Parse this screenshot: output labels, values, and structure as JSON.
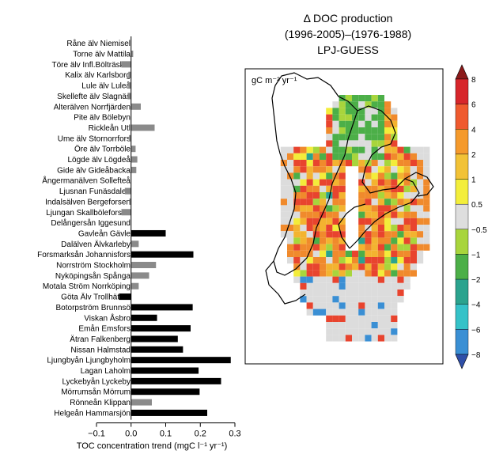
{
  "chart_data": [
    {
      "type": "bar",
      "orientation": "horizontal",
      "xlabel": "TOC concentration trend (mgC l⁻¹ yr⁻¹)",
      "xlim": [
        -0.1,
        0.3
      ],
      "xticks": [
        "−0.1",
        "0.0",
        "0.1",
        "0.2",
        "0.3"
      ],
      "tick_values": [
        -0.1,
        0.0,
        0.1,
        0.2,
        0.3
      ],
      "colors": {
        "significant": "#000000",
        "not_significant": "#8a8a8a"
      },
      "categories": [
        "Råne älv Niemisel",
        "Torne älv Mattila",
        "Töre älv Infl.Bölträsket",
        "Kalix älv Karlsborg",
        "Lule älv Luleå",
        "Skellefte älv Slagnäs",
        "Alterälven Norrfjärden",
        "Pite älv Bölebyn",
        "Rickleån Utl",
        "Ume älv Stornorrfors",
        "Öre älv Torrböle",
        "Lögde älv Lögdeå",
        "Gide älv Gideåbacka",
        "Ångermanälven Sollefteå",
        "Ljusnan Funäsdalen",
        "Indalsälven Bergeforsen",
        "Ljungan Skallböleforsen",
        "Delångersån Iggesund",
        "Gavleån Gävle",
        "Dalälven Älvkarleby",
        "Forsmarksån Johannisfors",
        "Norrström Stockholm",
        "Nyköpingsån Spånga",
        "Motala Ström Norrköping",
        "Göta Älv Trollhättan",
        "Botorpström Brunnsö",
        "Viskan Åsbro",
        "Emån Emsfors",
        "Ätran Falkenberg",
        "Nissan Halmstad",
        "Ljungbyån Ljungbyholm",
        "Lagan Laholm",
        "Lyckebyån Lyckeby",
        "Mörrumsån Mörrum",
        "Rönneån Klippan",
        "Helgeån Hammarsjön"
      ],
      "values": [
        0.0,
        0.006,
        -0.028,
        -0.008,
        -0.008,
        -0.01,
        0.028,
        0.0,
        0.068,
        -0.006,
        0.013,
        0.018,
        0.015,
        0.0,
        -0.018,
        -0.005,
        -0.028,
        0.0,
        0.1,
        0.022,
        0.18,
        0.072,
        0.052,
        0.022,
        -0.035,
        0.178,
        0.075,
        0.172,
        0.135,
        0.15,
        0.288,
        0.195,
        0.26,
        0.198,
        0.06,
        0.22
      ],
      "significant": [
        false,
        false,
        false,
        false,
        false,
        false,
        false,
        false,
        false,
        false,
        false,
        false,
        false,
        false,
        false,
        false,
        false,
        false,
        true,
        false,
        true,
        false,
        false,
        false,
        true,
        true,
        true,
        true,
        true,
        true,
        true,
        true,
        true,
        true,
        false,
        true
      ]
    },
    {
      "type": "heatmap",
      "title_lines": [
        "Δ DOC production",
        "(1996-2005)–(1976-1988)",
        "LPJ-GUESS"
      ],
      "unit_label": "gC m⁻² yr⁻¹",
      "colorbar": {
        "tick_labels": [
          "8",
          "6",
          "4",
          "2",
          "1",
          "0.5",
          "−0.5",
          "−1",
          "−2",
          "−4",
          "−6",
          "−8"
        ],
        "colors": [
          "#8b1a1a",
          "#d7262b",
          "#ef5a2e",
          "#f59a2c",
          "#f2c236",
          "#f3ee3b",
          "#dedede",
          "#a8d53c",
          "#4caf48",
          "#2ba38e",
          "#35c2c8",
          "#3a8fd4",
          "#2f4fa8"
        ]
      },
      "cell_palette": [
        "#dcdcdc",
        "#e8442e",
        "#f08a2c",
        "#f3b330",
        "#f3ec3a",
        "#a8d53c",
        "#4caf48",
        "#2ba38e",
        "#35c2c8",
        "#3a8fd4",
        "#2f4fa8"
      ]
    }
  ]
}
